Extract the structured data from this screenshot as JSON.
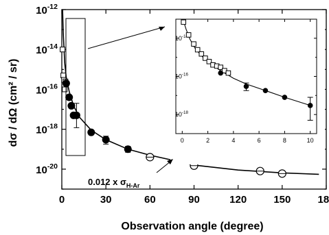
{
  "chart_data": [
    {
      "type": "scatter",
      "xlabel": "Observation angle (degree)",
      "ylabel": "dσ / dΩ  (cm² / sr)",
      "xlim": [
        0,
        180
      ],
      "ylim": [
        1e-21,
        1e-12
      ],
      "yscale": "log",
      "x_ticks": [
        "0",
        "30",
        "60",
        "90",
        "120",
        "150",
        "180"
      ],
      "x_tick_values": [
        0,
        30,
        60,
        90,
        120,
        150,
        180
      ],
      "y_tick_exponents": [
        -12,
        -14,
        -16,
        -18,
        -20
      ],
      "annotation": "0.012 x σ",
      "annotation_subscript": "H-Ar",
      "series": [
        {
          "marker": "open-square",
          "x": [
            0.5,
            1,
            1.5,
            2,
            2.5,
            3
          ],
          "y": [
            1e-14,
            5e-16,
            3e-16,
            1e-16,
            2.5e-16,
            2e-16
          ]
        },
        {
          "marker": "filled-circle",
          "x": [
            3,
            5,
            6.5,
            8,
            10,
            20,
            30,
            45
          ],
          "y": [
            2e-16,
            4e-17,
            1.5e-17,
            5e-18,
            5e-18,
            7e-19,
            3e-19,
            1e-19
          ]
        },
        {
          "marker": "open-circle",
          "x": [
            60,
            90,
            135,
            150
          ],
          "y": [
            4e-20,
            1.5e-20,
            8e-21,
            6e-21
          ]
        },
        {
          "marker": "line",
          "x": [
            0.5,
            1,
            2,
            3,
            5,
            8,
            12,
            20,
            30,
            45,
            60,
            90,
            120,
            150,
            175
          ],
          "y": [
            1e-12,
            6e-14,
            2e-15,
            4e-16,
            8e-17,
            1.5e-17,
            4e-18,
            9e-19,
            3e-19,
            1e-19,
            5e-20,
            1.6e-20,
            9e-21,
            6.5e-21,
            5.5e-21
          ]
        }
      ]
    },
    {
      "type": "scatter",
      "xlabel": "",
      "ylabel": "",
      "xlim": [
        -0.5,
        10.5
      ],
      "ylim": [
        1e-19,
        1e-13
      ],
      "yscale": "log",
      "x_ticks": [
        "0",
        "2",
        "4",
        "6",
        "8",
        "10"
      ],
      "x_tick_values": [
        0,
        2,
        4,
        6,
        8,
        10
      ],
      "y_tick_exponents": [
        -14,
        -16,
        -18
      ],
      "series": [
        {
          "marker": "open-square",
          "x": [
            0.1,
            0.5,
            0.9,
            1.2,
            1.5,
            1.8,
            2.1,
            2.4,
            2.7,
            3.0,
            3.3,
            3.6
          ],
          "y": [
            7e-14,
            1.5e-14,
            5e-15,
            2.5e-15,
            1.5e-15,
            9e-16,
            6e-16,
            4e-16,
            3.5e-16,
            3e-16,
            2e-16,
            1.5e-16
          ]
        },
        {
          "marker": "filled-circle",
          "x": [
            3.0,
            5.0,
            6.5,
            8.0,
            10.0
          ],
          "y": [
            1.5e-16,
            3e-17,
            1.8e-17,
            8e-18,
            3e-18
          ]
        },
        {
          "marker": "line",
          "x": [
            0.05,
            0.3,
            0.6,
            1.0,
            1.5,
            2.0,
            3.0,
            4.0,
            5.0,
            6.5,
            8.0,
            10.0
          ],
          "y": [
            1e-13,
            3e-14,
            9e-15,
            3e-15,
            1.2e-15,
            6e-16,
            2e-16,
            8e-17,
            4e-17,
            1.8e-17,
            8e-18,
            3e-18
          ]
        }
      ]
    }
  ]
}
